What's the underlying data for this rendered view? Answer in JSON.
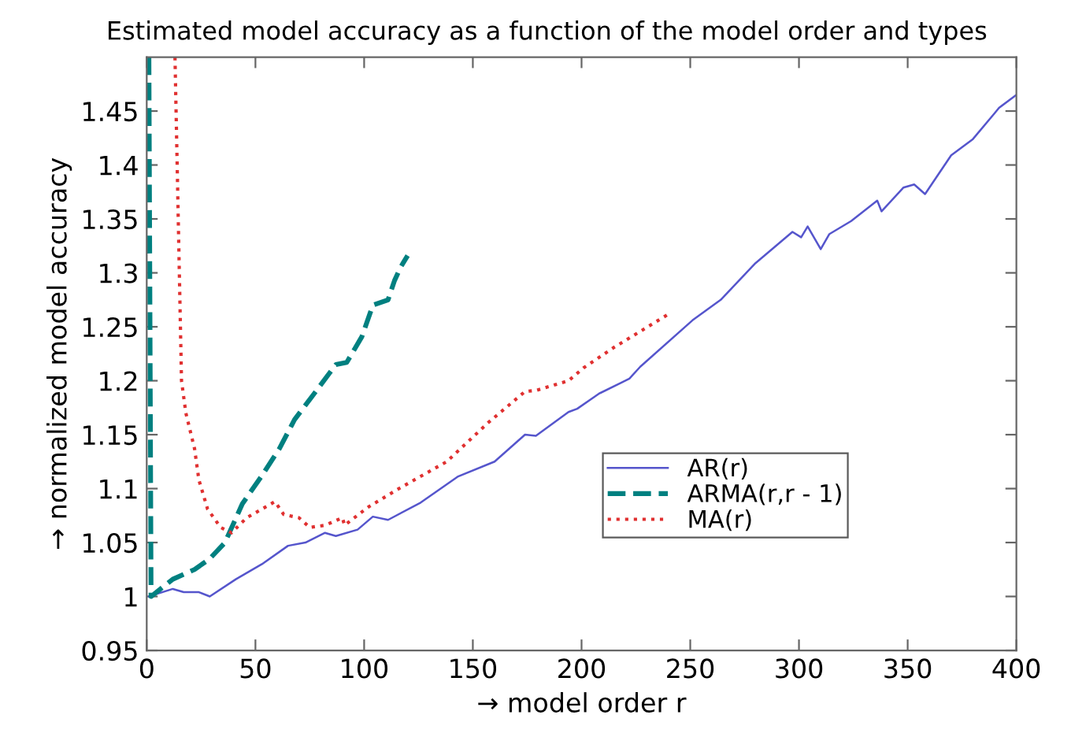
{
  "chart_data": {
    "type": "line",
    "title": "Estimated model accuracy as a function of the model order and types",
    "xlabel": "→ model order r",
    "ylabel": "→ normalized model accuracy",
    "xlim": [
      0,
      400
    ],
    "xticks": [
      0,
      50,
      100,
      150,
      200,
      250,
      300,
      350,
      400
    ],
    "ylim": [
      0.95,
      1.5
    ],
    "yticks": [
      0.95,
      1,
      1.05,
      1.1,
      1.15,
      1.2,
      1.25,
      1.3,
      1.35,
      1.4,
      1.45
    ],
    "grid": false,
    "legend": "lower right",
    "marker": "none",
    "series": [
      {
        "name": "AR(r)",
        "color": "#5555cc",
        "line_style": "solid",
        "x": [
          1,
          12,
          17,
          24,
          29,
          41,
          53,
          65,
          73,
          82,
          87,
          97,
          104,
          111,
          126,
          143,
          160,
          174,
          179,
          194,
          198,
          208,
          218,
          222,
          227,
          251,
          264,
          280,
          297,
          301,
          304,
          310,
          314,
          324,
          336,
          338,
          348,
          353,
          358,
          370,
          380,
          390,
          392,
          400
        ],
        "values": [
          1.0,
          1.007,
          1.004,
          1.004,
          1.0,
          1.016,
          1.03,
          1.047,
          1.05,
          1.059,
          1.056,
          1.062,
          1.074,
          1.071,
          1.087,
          1.111,
          1.125,
          1.15,
          1.149,
          1.171,
          1.174,
          1.188,
          1.198,
          1.202,
          1.213,
          1.256,
          1.275,
          1.309,
          1.338,
          1.333,
          1.343,
          1.322,
          1.336,
          1.348,
          1.367,
          1.357,
          1.379,
          1.382,
          1.373,
          1.409,
          1.424,
          1.448,
          1.453,
          1.465
        ]
      },
      {
        "name": "ARMA(r,r - 1)",
        "color": "#008080",
        "line_style": "dashed",
        "x": [
          1,
          2,
          12,
          22,
          29,
          36,
          44,
          53,
          61,
          68,
          77,
          87,
          92,
          99,
          104,
          111,
          114,
          117,
          120
        ],
        "values": [
          1.5,
          1.0,
          1.016,
          1.025,
          1.035,
          1.05,
          1.086,
          1.112,
          1.137,
          1.164,
          1.188,
          1.215,
          1.217,
          1.241,
          1.27,
          1.275,
          1.293,
          1.306,
          1.316
        ]
      },
      {
        "name": "MA(r)",
        "color": "#e03030",
        "line_style": "dotted",
        "x": [
          13,
          16,
          18,
          22,
          24,
          28,
          34,
          39,
          46,
          53,
          59,
          63,
          70,
          75,
          82,
          90,
          91,
          102,
          116,
          138,
          157,
          174,
          179,
          194,
          201,
          215,
          241
        ],
        "values": [
          1.5,
          1.2,
          1.17,
          1.137,
          1.108,
          1.081,
          1.064,
          1.059,
          1.073,
          1.081,
          1.088,
          1.076,
          1.073,
          1.064,
          1.066,
          1.073,
          1.066,
          1.083,
          1.1,
          1.125,
          1.161,
          1.19,
          1.191,
          1.2,
          1.212,
          1.231,
          1.263
        ]
      }
    ]
  }
}
